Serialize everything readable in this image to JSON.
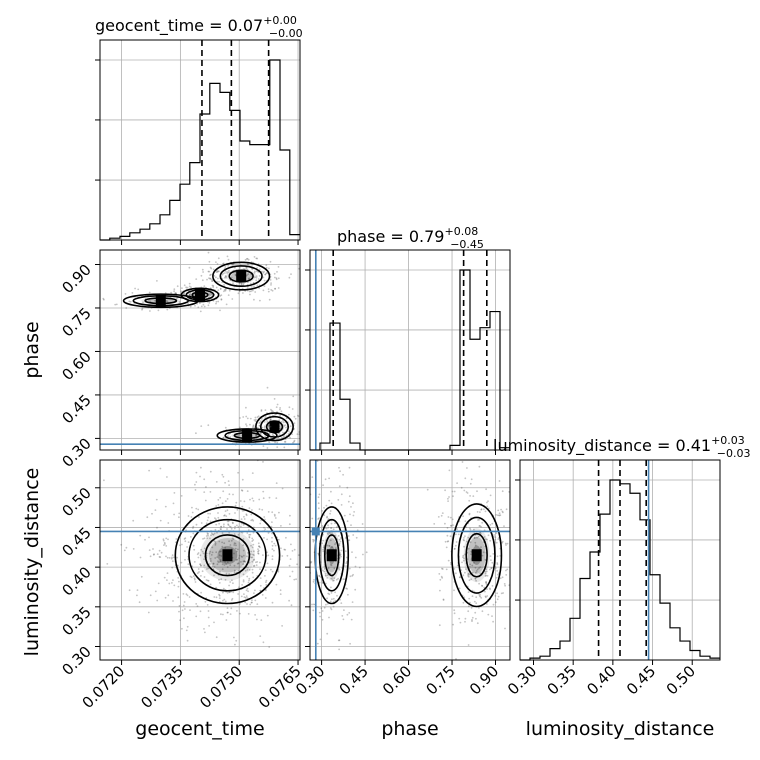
{
  "chart_data": {
    "type": "corner",
    "parameters": [
      "geocent_time",
      "phase",
      "luminosity_distance"
    ],
    "titles": [
      {
        "param": "geocent_time",
        "value": "0.07",
        "upper": "+0.00",
        "lower": "−0.00"
      },
      {
        "param": "phase",
        "value": "0.79",
        "upper": "+0.08",
        "lower": "−0.45"
      },
      {
        "param": "luminosity_distance",
        "value": "0.41",
        "upper": "+0.03",
        "lower": "−0.03"
      }
    ],
    "axis_labels": {
      "geocent_time": "geocent_time",
      "phase": "phase",
      "luminosity_distance": "luminosity_distance"
    },
    "ranges": {
      "geocent_time": [
        0.07145,
        0.07655
      ],
      "phase": [
        0.26,
        0.95
      ],
      "luminosity_distance": [
        0.283,
        0.535
      ]
    },
    "ticks": {
      "geocent_time": {
        "values": [
          0.072,
          0.0735,
          0.075,
          0.0765
        ],
        "labels": [
          "0.0720",
          "0.0735",
          "0.0750",
          "0.0765"
        ]
      },
      "phase": {
        "values": [
          0.3,
          0.45,
          0.6,
          0.75,
          0.9
        ],
        "labels": [
          "0.30",
          "0.45",
          "0.60",
          "0.75",
          "0.90"
        ]
      },
      "luminosity_distance": {
        "values": [
          0.3,
          0.35,
          0.4,
          0.45,
          0.5
        ],
        "labels": [
          "0.30",
          "0.35",
          "0.40",
          "0.45",
          "0.50"
        ]
      }
    },
    "truths": {
      "geocent_time": null,
      "phase": 0.28,
      "luminosity_distance": 0.445
    },
    "quantiles": {
      "geocent_time": [
        0.07405,
        0.0748,
        0.07575
      ],
      "phase": [
        0.34,
        0.79,
        0.87
      ],
      "luminosity_distance": [
        0.382,
        0.409,
        0.442
      ]
    },
    "histograms": {
      "geocent_time": {
        "edges": [
          0.07145,
          0.0717,
          0.07196,
          0.07221,
          0.07247,
          0.07272,
          0.07298,
          0.07323,
          0.07349,
          0.07374,
          0.074,
          0.07425,
          0.07451,
          0.07476,
          0.07502,
          0.07527,
          0.07553,
          0.07578,
          0.07604,
          0.07629,
          0.07655
        ],
        "counts": [
          0,
          1,
          2,
          4,
          6,
          9,
          14,
          22,
          31,
          43,
          70,
          87,
          82,
          72,
          55,
          53,
          53,
          100,
          50,
          3
        ]
      },
      "phase": {
        "edges": [
          0.26,
          0.2945,
          0.329,
          0.3635,
          0.398,
          0.4325,
          0.467,
          0.5015,
          0.536,
          0.5705,
          0.605,
          0.6395,
          0.674,
          0.7085,
          0.743,
          0.7775,
          0.812,
          0.8465,
          0.881,
          0.9155,
          0.95
        ],
        "counts": [
          0,
          3,
          55,
          22,
          3,
          0,
          0,
          0,
          0,
          0,
          0,
          0,
          0,
          0,
          2,
          78,
          48,
          53,
          60,
          1
        ]
      },
      "luminosity_distance": {
        "edges": [
          0.283,
          0.2956,
          0.3082,
          0.3208,
          0.3334,
          0.346,
          0.3586,
          0.3712,
          0.3838,
          0.3964,
          0.409,
          0.4216,
          0.4342,
          0.4468,
          0.4594,
          0.472,
          0.4846,
          0.4972,
          0.5098,
          0.5224,
          0.535
        ],
        "counts": [
          0,
          1,
          2,
          6,
          10,
          22,
          43,
          57,
          77,
          95,
          93,
          88,
          74,
          45,
          30,
          17,
          10,
          5,
          2,
          1
        ]
      }
    },
    "sample_clusters": [
      {
        "pair": [
          "geocent_time",
          "phase"
        ],
        "cx": 0.07505,
        "cy": 0.86,
        "sx": 0.00038,
        "sy": 0.025,
        "n": 260
      },
      {
        "pair": [
          "geocent_time",
          "phase"
        ],
        "cx": 0.074,
        "cy": 0.795,
        "sx": 0.00025,
        "sy": 0.012,
        "n": 160
      },
      {
        "pair": [
          "geocent_time",
          "phase"
        ],
        "cx": 0.073,
        "cy": 0.775,
        "sx": 0.0005,
        "sy": 0.012,
        "n": 70
      },
      {
        "pair": [
          "geocent_time",
          "phase"
        ],
        "cx": 0.0759,
        "cy": 0.34,
        "sx": 0.00025,
        "sy": 0.025,
        "n": 220
      },
      {
        "pair": [
          "geocent_time",
          "phase"
        ],
        "cx": 0.0752,
        "cy": 0.31,
        "sx": 0.0004,
        "sy": 0.012,
        "n": 60
      },
      {
        "pair": [
          "geocent_time",
          "luminosity_distance"
        ],
        "cx": 0.0747,
        "cy": 0.415,
        "sx": 0.0007,
        "sy": 0.032,
        "n": 700
      },
      {
        "pair": [
          "phase",
          "luminosity_distance"
        ],
        "cx": 0.335,
        "cy": 0.415,
        "sx": 0.03,
        "sy": 0.032,
        "n": 300
      },
      {
        "pair": [
          "phase",
          "luminosity_distance"
        ],
        "cx": 0.835,
        "cy": 0.415,
        "sx": 0.045,
        "sy": 0.034,
        "n": 380
      }
    ],
    "grid": true
  }
}
